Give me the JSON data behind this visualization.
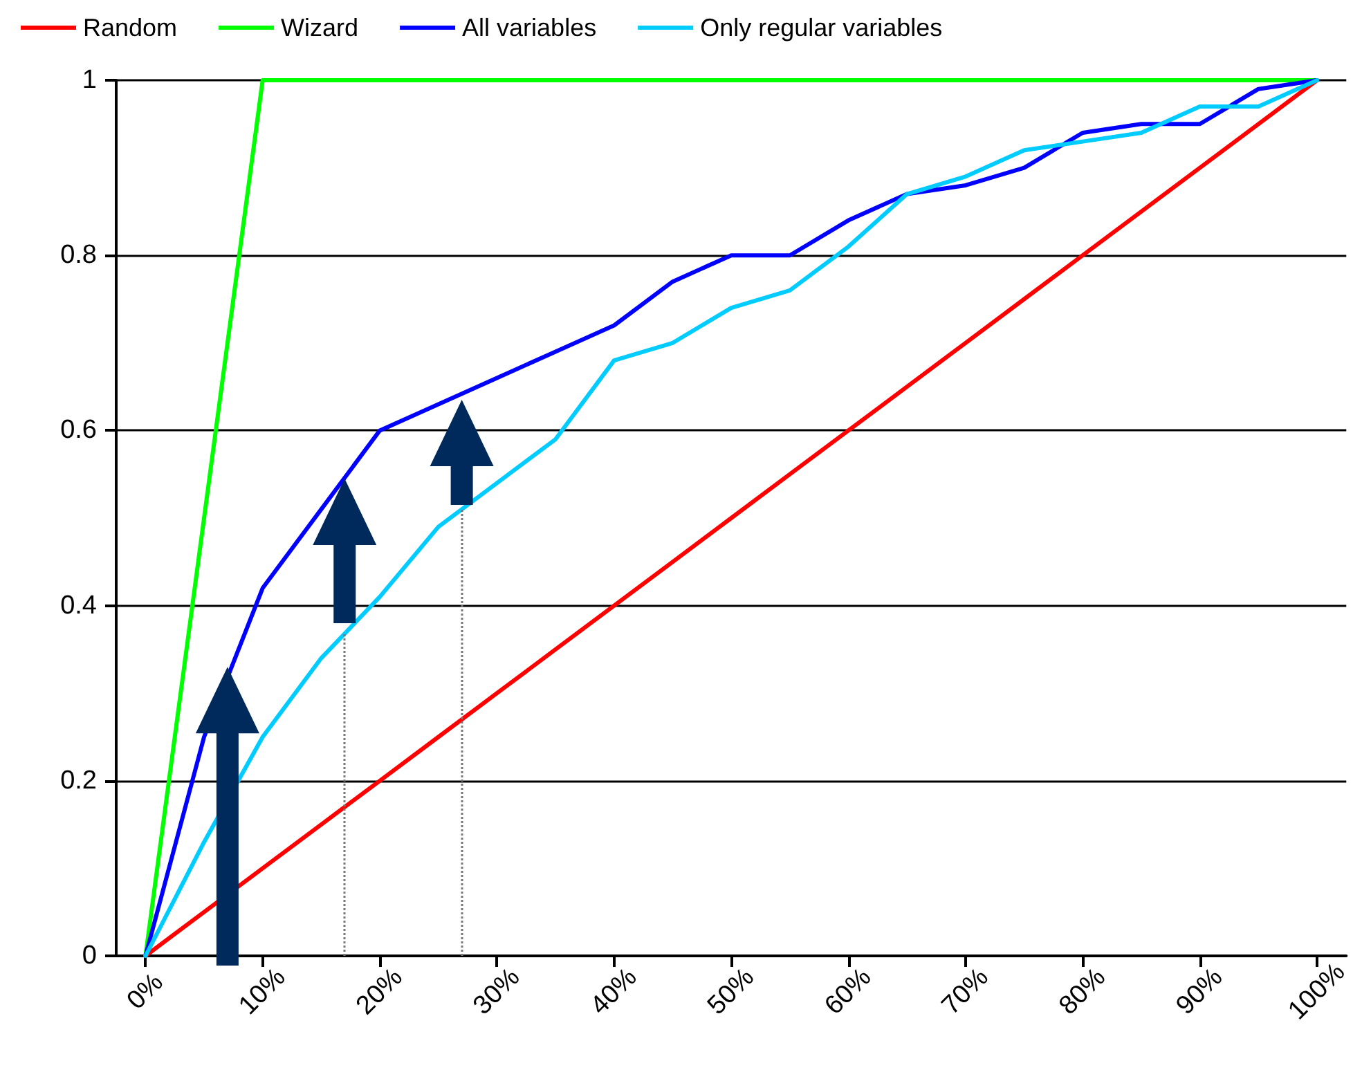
{
  "chart_data": {
    "type": "line",
    "x": [
      0,
      5,
      10,
      15,
      20,
      25,
      30,
      35,
      40,
      45,
      50,
      55,
      60,
      65,
      70,
      75,
      80,
      85,
      90,
      95,
      100
    ],
    "series": [
      {
        "name": "Random",
        "color": "#ff0000",
        "values": [
          0,
          0.05,
          0.1,
          0.15,
          0.2,
          0.25,
          0.3,
          0.35,
          0.4,
          0.45,
          0.5,
          0.55,
          0.6,
          0.65,
          0.7,
          0.75,
          0.8,
          0.85,
          0.9,
          0.95,
          1
        ]
      },
      {
        "name": "Wizard",
        "color": "#00ff00",
        "values": [
          0,
          0.5,
          1,
          1,
          1,
          1,
          1,
          1,
          1,
          1,
          1,
          1,
          1,
          1,
          1,
          1,
          1,
          1,
          1,
          1,
          1
        ]
      },
      {
        "name": "All variables",
        "color": "#0000ff",
        "values": [
          0,
          0.25,
          0.42,
          0.51,
          0.6,
          0.63,
          0.66,
          0.69,
          0.72,
          0.77,
          0.8,
          0.8,
          0.84,
          0.87,
          0.88,
          0.9,
          0.94,
          0.95,
          0.95,
          0.99,
          1
        ]
      },
      {
        "name": "Only regular variables",
        "color": "#00ccff",
        "values": [
          0,
          0.13,
          0.25,
          0.34,
          0.41,
          0.49,
          0.54,
          0.59,
          0.68,
          0.7,
          0.74,
          0.76,
          0.81,
          0.87,
          0.89,
          0.92,
          0.93,
          0.94,
          0.97,
          0.97,
          1
        ]
      }
    ],
    "xlim": [
      -2.5,
      102.5
    ],
    "xticks": [
      {
        "value": 0,
        "label": "0%"
      },
      {
        "value": 10,
        "label": "10%"
      },
      {
        "value": 20,
        "label": "20%"
      },
      {
        "value": 30,
        "label": "30%"
      },
      {
        "value": 40,
        "label": "40%"
      },
      {
        "value": 50,
        "label": "50%"
      },
      {
        "value": 60,
        "label": "60%"
      },
      {
        "value": 70,
        "label": "70%"
      },
      {
        "value": 80,
        "label": "80%"
      },
      {
        "value": 90,
        "label": "90%"
      },
      {
        "value": 100,
        "label": "100%"
      }
    ],
    "ylim": [
      0,
      1
    ],
    "yticks": [
      0,
      0.2,
      0.4,
      0.6,
      0.8,
      1
    ],
    "ref_lines": [
      {
        "axis": "x",
        "value": 17,
        "color": "#777777",
        "line_style": "dotted"
      },
      {
        "axis": "x",
        "value": 27,
        "color": "#777777",
        "line_style": "dotted"
      }
    ],
    "grid": "y",
    "legend": "top",
    "marker": "none",
    "line_style": "solid"
  }
}
